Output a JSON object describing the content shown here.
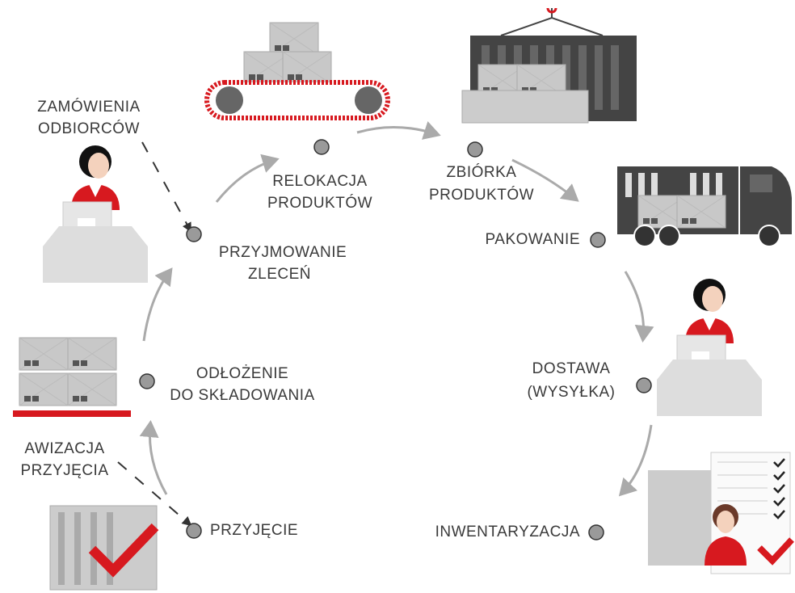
{
  "steps": [
    {
      "lines": [
        "ZAMÓWIENIA",
        "ODBIORCÓW"
      ]
    },
    {
      "lines": [
        "PRZYJMOWANIE",
        "ZLECEŃ"
      ]
    },
    {
      "lines": [
        "RELOKACJA",
        "PRODUKTÓW"
      ]
    },
    {
      "lines": [
        "ZBIÓRKA",
        "PRODUKTÓW"
      ]
    },
    {
      "lines": [
        "PAKOWANIE"
      ]
    },
    {
      "lines": [
        "DOSTAWA",
        "(WYSYŁKA)"
      ]
    },
    {
      "lines": [
        "INWENTARYZACJA"
      ]
    },
    {
      "lines": [
        "AWIZACJA",
        "PRZYJĘCIA"
      ]
    },
    {
      "lines": [
        "PRZYJĘCIE"
      ]
    },
    {
      "lines": [
        "ODŁOŻENIE",
        "DO SKŁADOWANIA"
      ]
    }
  ]
}
